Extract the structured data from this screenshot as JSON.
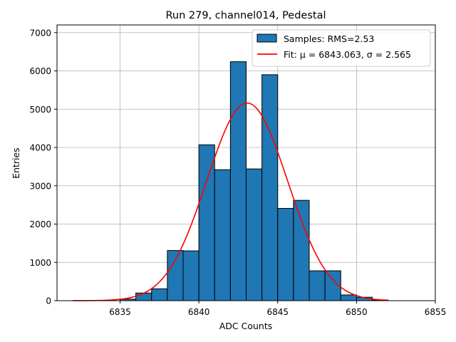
{
  "chart_data": {
    "type": "bar",
    "title": "Run 279, channel014, Pedestal",
    "xlabel": "ADC Counts",
    "ylabel": "Entries",
    "xlim": [
      6831,
      6855
    ],
    "ylim": [
      0,
      7200
    ],
    "xticks": [
      6835,
      6840,
      6845,
      6850,
      6855
    ],
    "yticks": [
      0,
      1000,
      2000,
      3000,
      4000,
      5000,
      6000,
      7000
    ],
    "grid": true,
    "legend_position": "top-right",
    "bin_width": 1,
    "bins": [
      {
        "x": 6835,
        "value": 40
      },
      {
        "x": 6836,
        "value": 200
      },
      {
        "x": 6837,
        "value": 310
      },
      {
        "x": 6838,
        "value": 1310
      },
      {
        "x": 6839,
        "value": 1300
      },
      {
        "x": 6840,
        "value": 4070
      },
      {
        "x": 6841,
        "value": 3420
      },
      {
        "x": 6842,
        "value": 6240
      },
      {
        "x": 6843,
        "value": 3440
      },
      {
        "x": 6844,
        "value": 5900
      },
      {
        "x": 6845,
        "value": 2410
      },
      {
        "x": 6846,
        "value": 2620
      },
      {
        "x": 6847,
        "value": 780
      },
      {
        "x": 6848,
        "value": 780
      },
      {
        "x": 6849,
        "value": 150
      },
      {
        "x": 6850,
        "value": 90
      },
      {
        "x": 6851,
        "value": 20
      }
    ],
    "fit": {
      "mu": 6843.063,
      "sigma": 2.565,
      "amplitude": 5160,
      "x_range": [
        6832,
        6852
      ]
    },
    "series": [
      {
        "name": "Samples: RMS=2.53",
        "kind": "histogram",
        "color": "#1f77b4",
        "edge": "#000000"
      },
      {
        "name": "Fit: μ = 6843.063, σ = 2.565",
        "kind": "gaussian",
        "color": "#ff0000"
      }
    ]
  }
}
